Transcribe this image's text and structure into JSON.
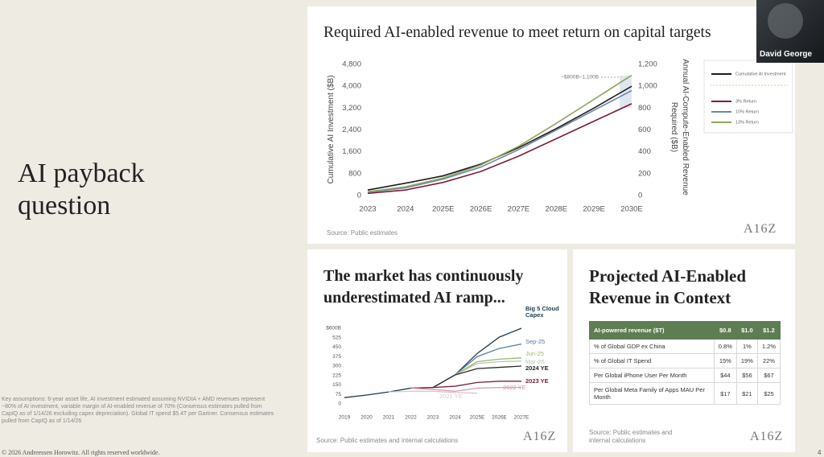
{
  "window": {
    "participant": "David George"
  },
  "slide": {
    "title": "AI payback question",
    "footnote": "Key assumptions: 6-year asset life, AI investment estimated assuming NVIDIA + AMD revenues represent ~80% of AI investment, variable margin of AI-enabled revenue of 70% (Consensus estimates pulled from CapIQ as of 1/14/26 excluding capex depreciation). Global IT spend $5.4T per Gartner. Consensus estimates pulled from CapIQ as of 1/14/26",
    "copyright": "© 2026 Andreessen Horowitz. All rights reserved worldwide.",
    "page_number": "4"
  },
  "chart_data": [
    {
      "type": "line",
      "title": "Required AI-enabled revenue to meet return on capital targets",
      "ylabel": "Cumulative AI Investment ($B)",
      "y2label": "Annual AI-Compute-Enabled Revenue Required ($B)",
      "annotation": "~$800B–1,100B",
      "source": "Source: Public estimates",
      "logo": "A16Z",
      "legend": "right",
      "categories": [
        "2023",
        "2024",
        "2025E",
        "2026E",
        "2027E",
        "2028E",
        "2029E",
        "2030E"
      ],
      "ylim": [
        0,
        4800
      ],
      "yticks": [
        0,
        800,
        {
          "value": 1600,
          "label": "1,600"
        },
        {
          "value": 2400,
          "label": "2,400"
        },
        {
          "value": 3200,
          "label": "3,200"
        },
        {
          "value": 4000,
          "label": "4,000"
        },
        {
          "value": 4800,
          "label": "4,800"
        }
      ],
      "y2lim": [
        0,
        1200
      ],
      "y2ticks": [
        0,
        200,
        400,
        600,
        800,
        {
          "value": 1000,
          "label": "1,000"
        },
        {
          "value": 1200,
          "label": "1,200"
        }
      ],
      "series": [
        {
          "name": "Cumulative AI Investment",
          "color": "#1d1d1d",
          "values": [
            200,
            450,
            720,
            1150,
            1750,
            2450,
            3200,
            4000
          ]
        },
        {
          "name": "3% Return",
          "color": "#7a1e3a",
          "axis": "y2",
          "values": [
            20,
            50,
            120,
            220,
            360,
            520,
            680,
            840
          ]
        },
        {
          "name": "10% Return",
          "color": "#6a88a3",
          "axis": "y2",
          "values": [
            30,
            70,
            150,
            260,
            420,
            600,
            780,
            960
          ]
        },
        {
          "name": "13% Return",
          "color": "#8fa65e",
          "axis": "y2",
          "values": [
            35,
            80,
            160,
            280,
            450,
            660,
            880,
            1100
          ]
        }
      ]
    },
    {
      "type": "line",
      "title": "The market has continuously underestimated AI ramp...",
      "source": "Source: Public estimates and internal calculations",
      "logo": "A16Z",
      "categories": [
        "2019",
        "2020",
        "2021",
        "2022",
        "2023",
        "2024",
        "2025E",
        "2026E",
        "2027E"
      ],
      "ylim": [
        0,
        600
      ],
      "yticks": [
        0,
        75,
        150,
        225,
        300,
        375,
        450,
        525,
        {
          "value": 600,
          "label": "$600B"
        }
      ],
      "series": [
        {
          "name": "Big 5 Cloud Capex",
          "color": "#1f3a4d",
          "values": [
            50,
            70,
            95,
            125,
            130,
            230,
            400,
            530,
            600
          ]
        },
        {
          "name": "Sep-25",
          "color": "#5b7c99",
          "values": [
            null,
            null,
            null,
            null,
            null,
            230,
            375,
            440,
            475
          ]
        },
        {
          "name": "Jun-25",
          "color": "#9bb56b",
          "values": [
            null,
            null,
            null,
            null,
            null,
            230,
            335,
            355,
            365
          ]
        },
        {
          "name": "Mar-25",
          "color": "#b9c4b0",
          "values": [
            null,
            null,
            null,
            null,
            null,
            230,
            320,
            335,
            340
          ]
        },
        {
          "name": "2024 YE",
          "color": "#2b2b2b",
          "values": [
            null,
            null,
            null,
            null,
            130,
            230,
            280,
            290,
            300
          ]
        },
        {
          "name": "2023 YE",
          "color": "#7a1e3a",
          "values": [
            null,
            null,
            null,
            125,
            130,
            140,
            170,
            180,
            180
          ]
        },
        {
          "name": "2022 YE",
          "color": "#d79aa8",
          "values": [
            null,
            null,
            null,
            125,
            115,
            100,
            125,
            130,
            130
          ]
        },
        {
          "name": "2021 YE",
          "color": "#d6c7cc",
          "values": [
            null,
            null,
            95,
            100,
            100,
            90,
            85,
            null,
            null
          ]
        }
      ]
    }
  ],
  "table": {
    "title": "Projected AI-Enabled Revenue in Context",
    "header": [
      "AI-powered revenue ($T)",
      "$0.8",
      "$1.0",
      "$1.2"
    ],
    "rows": [
      [
        "% of Global GDP ex China",
        "0.8%",
        "1%",
        "1.2%"
      ],
      [
        "% of Global IT Spend",
        "15%",
        "19%",
        "22%"
      ],
      [
        "Per Global iPhone User Per Month",
        "$44",
        "$56",
        "$67"
      ],
      [
        "Per Global Meta Family of Apps MAU Per Month",
        "$17",
        "$21",
        "$25"
      ]
    ],
    "source": "Source: Public estimates and internal calculations",
    "logo": "A16Z"
  }
}
